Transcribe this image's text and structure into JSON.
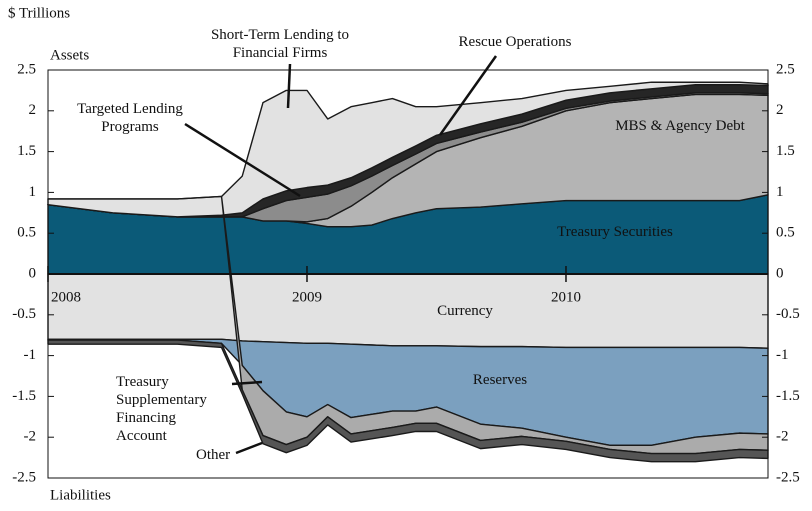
{
  "chart_data": {
    "type": "area",
    "stacked": true,
    "unit_label": "$ Trillions",
    "top_label": "Assets",
    "bottom_label": "Liabilities",
    "x": [
      2008,
      2008.25,
      2008.5,
      2008.67,
      2008.75,
      2008.83,
      2008.92,
      2009,
      2009.08,
      2009.17,
      2009.25,
      2009.33,
      2009.42,
      2009.5,
      2009.67,
      2009.83,
      2010,
      2010.17,
      2010.33,
      2010.5,
      2010.67,
      2010.78
    ],
    "xlim": [
      2008,
      2010.78
    ],
    "xticks": [
      2008,
      2009,
      2010
    ],
    "ylim": [
      -2.5,
      2.5
    ],
    "yticks": [
      -2.5,
      -2,
      -1.5,
      -1,
      -0.5,
      0,
      0.5,
      1,
      1.5,
      2,
      2.5
    ],
    "series": [
      {
        "name": "Treasury Securities",
        "color": "#0b5a78",
        "values": [
          0.85,
          0.75,
          0.7,
          0.7,
          0.7,
          0.65,
          0.65,
          0.62,
          0.58,
          0.58,
          0.6,
          0.68,
          0.75,
          0.8,
          0.82,
          0.86,
          0.9,
          0.9,
          0.9,
          0.9,
          0.9,
          0.97
        ]
      },
      {
        "name": "MBS & Agency Debt",
        "color": "#b4b4b4",
        "values": [
          0,
          0,
          0,
          0,
          0,
          0,
          0,
          0.02,
          0.1,
          0.25,
          0.4,
          0.5,
          0.6,
          0.7,
          0.85,
          0.95,
          1.1,
          1.2,
          1.25,
          1.3,
          1.3,
          1.22
        ]
      },
      {
        "name": "Targeted Lending Programs",
        "color": "#8c8c8c",
        "values": [
          0,
          0,
          0,
          0,
          0,
          0.15,
          0.25,
          0.3,
          0.3,
          0.25,
          0.2,
          0.15,
          0.12,
          0.1,
          0.07,
          0.05,
          0.03,
          0.02,
          0.02,
          0.02,
          0.02,
          0.02
        ]
      },
      {
        "name": "Rescue Operations",
        "color": "#262626",
        "values": [
          0,
          0,
          0,
          0.02,
          0.05,
          0.12,
          0.12,
          0.12,
          0.11,
          0.1,
          0.1,
          0.1,
          0.1,
          0.1,
          0.1,
          0.1,
          0.1,
          0.1,
          0.1,
          0.1,
          0.1,
          0.1
        ]
      },
      {
        "name": "Short-Term Lending to Financial Firms",
        "color": "#e2e2e2",
        "values": [
          0.07,
          0.17,
          0.22,
          0.23,
          0.45,
          1.18,
          1.23,
          1.19,
          0.81,
          0.87,
          0.8,
          0.72,
          0.48,
          0.35,
          0.26,
          0.19,
          0.12,
          0.08,
          0.08,
          0.03,
          0.03,
          0.02
        ]
      },
      {
        "name": "Currency",
        "color": "#e2e2e2",
        "values": [
          -0.8,
          -0.8,
          -0.8,
          -0.8,
          -0.82,
          -0.83,
          -0.84,
          -0.85,
          -0.85,
          -0.86,
          -0.87,
          -0.88,
          -0.88,
          -0.88,
          -0.89,
          -0.89,
          -0.9,
          -0.9,
          -0.9,
          -0.9,
          -0.9,
          -0.91
        ]
      },
      {
        "name": "Reserves",
        "color": "#7ba0bf",
        "values": [
          -0.01,
          -0.01,
          -0.01,
          -0.05,
          -0.3,
          -0.6,
          -0.85,
          -0.9,
          -0.75,
          -0.9,
          -0.85,
          -0.8,
          -0.8,
          -0.75,
          -0.95,
          -1.0,
          -1.1,
          -1.2,
          -1.2,
          -1.1,
          -1.05,
          -1.05
        ]
      },
      {
        "name": "Treasury Supplementary Financing Account",
        "color": "#ababab",
        "values": [
          0,
          0,
          0,
          0,
          -0.3,
          -0.55,
          -0.4,
          -0.25,
          -0.15,
          -0.2,
          -0.2,
          -0.2,
          -0.15,
          -0.2,
          -0.2,
          -0.1,
          -0.05,
          -0.05,
          -0.1,
          -0.2,
          -0.2,
          -0.2
        ]
      },
      {
        "name": "Other",
        "color": "#555555",
        "values": [
          -0.05,
          -0.05,
          -0.05,
          -0.05,
          -0.05,
          -0.1,
          -0.1,
          -0.1,
          -0.1,
          -0.1,
          -0.1,
          -0.1,
          -0.1,
          -0.1,
          -0.1,
          -0.1,
          -0.1,
          -0.1,
          -0.1,
          -0.1,
          -0.1,
          -0.1
        ]
      }
    ]
  }
}
